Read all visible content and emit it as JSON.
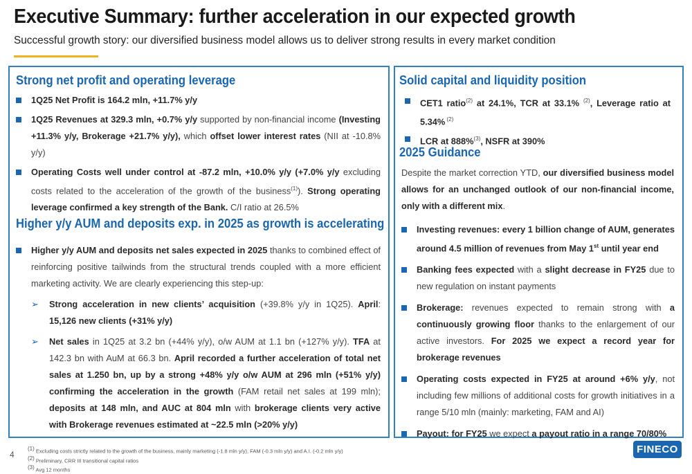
{
  "header": {
    "title": "Executive Summary: further acceleration in our expected growth",
    "subtitle": "Successful growth story: our diversified business model allows us to deliver strong results in every market condition"
  },
  "left": {
    "section1_title": "Strong net profit and operating leverage",
    "b1": "1Q25 Net Profit is 164.2 mln, +11.7% y/y",
    "b2_bold1": "1Q25 Revenues at 329.3 mln, +0.7% y/y",
    "b2_t1": " supported by non-financial income ",
    "b2_bold2": "(Investing +11.3% y/y, Brokerage +21.7% y/y),",
    "b2_t2": " which ",
    "b2_bold3": "offset lower interest rates",
    "b2_t3": " (NII at -10.8% y/y)",
    "b3_bold1": "Operating Costs well under control at -87.2 mln, +10.0% y/y (+7.0% y/y",
    "b3_t1": " excluding costs related to the acceleration of the growth of the business",
    "b3_sup": "(1)",
    "b3_t2": "). ",
    "b3_bold2": "Strong operating leverage confirmed a key strength of the Bank.",
    "b3_t3": " C/I ratio at 26.5%",
    "section2_title": "Higher y/y AUM and deposits exp. in 2025 as growth is accelerating",
    "b4_bold": "Higher y/y AUM and deposits net sales expected in 2025",
    "b4_t": " thanks to combined effect of reinforcing positive tailwinds from the structural trends coupled with a more efficient marketing activity. We are clearly experiencing this step-up:",
    "s1_bold1": "Strong acceleration in new clients’ acquisition",
    "s1_t1": " (+39.8% y/y in 1Q25). ",
    "s1_bold2": "April",
    "s1_t2": ": ",
    "s1_bold3": "15,126 new clients (+31% y/y)",
    "s2_bold1": "Net sales",
    "s2_t1": " in 1Q25 at 3.2 bn (+44% y/y), o/w AUM at 1.1 bn (+127% y/y). ",
    "s2_bold2": "TFA",
    "s2_t2": " at 142.3 bn with AuM at 66.3 bn. ",
    "s2_bold3": "April recorded a further acceleration of total net sales at 1.250 bn, up by a strong +48% y/y o/w AUM at 296 mln (+51% y/y) confirming the acceleration in the growth",
    "s2_t3": " (FAM retail net sales at 199 mln); ",
    "s2_bold4": "deposits at 148 mln, and AUC at 804 mln",
    "s2_t4": " with ",
    "s2_bold5": "brokerage clients very active with Brokerage revenues estimated at ~22.5 mln (>20% y/y)",
    "arrow": "➢"
  },
  "right": {
    "section1_title": "Solid capital and liquidity position",
    "c1_bold1": "CET1 ratio",
    "c1_sup1": "(2)",
    "c1_bold2": " at 24.1%, TCR at 33.1% ",
    "c1_sup2": "(2)",
    "c1_bold3": ", Leverage ratio at 5.34%",
    "c1_sup3": " (2)",
    "c2_bold1": "LCR at 888%",
    "c2_sup": "(3)",
    "c2_bold2": ", NSFR at 390%",
    "section2_title": "2025 Guidance",
    "p_t1": "Despite the market correction YTD, ",
    "p_bold": "our diversified business model allows for an unchanged outlook of our non-financial income, only with a different mix",
    "p_t2": ".",
    "g1_bold1": "Investing revenues: every 1 billion change of AUM, generates around 4.5 million of revenues from May 1",
    "g1_sup": "st",
    "g1_bold2": " until year end",
    "g2_bold1": "Banking fees expected",
    "g2_t1": " with a ",
    "g2_bold2": "slight decrease in FY25",
    "g2_t2": " due to new regulation on instant payments",
    "g3_bold1": "Brokerage:",
    "g3_t1": " revenues expected to remain strong with ",
    "g3_bold2": "a continuously growing floor",
    "g3_t2": " thanks to the enlargement of our active investors. ",
    "g3_bold3": "For 2025 we expect a record year for brokerage revenues",
    "g4_bold": "Operating costs expected in FY25 at around +6% y/y",
    "g4_t": ", not including few millions of additional costs for growth initiatives in a range 5/10 mln (mainly: marketing, FAM and AI)",
    "g5_bold1": "Payout: for FY25",
    "g5_t": " we expect ",
    "g5_bold2": "a payout ratio in a range 70/80%"
  },
  "footer": {
    "page_number": "4",
    "n1_sup": "(1)",
    "n1": " Excluding costs strictly related to the growth of the business, mainly marketing (-1.8 mln y/y), FAM (-0.3 mln y/y) and A.I. (-0.2 mln y/y)",
    "n2_sup": "(2)",
    "n2": " Preliminary, CRR III transitional capital ratios",
    "n3_sup": "(3)",
    "n3": " Avg 12 months",
    "logo": "FINECO"
  }
}
